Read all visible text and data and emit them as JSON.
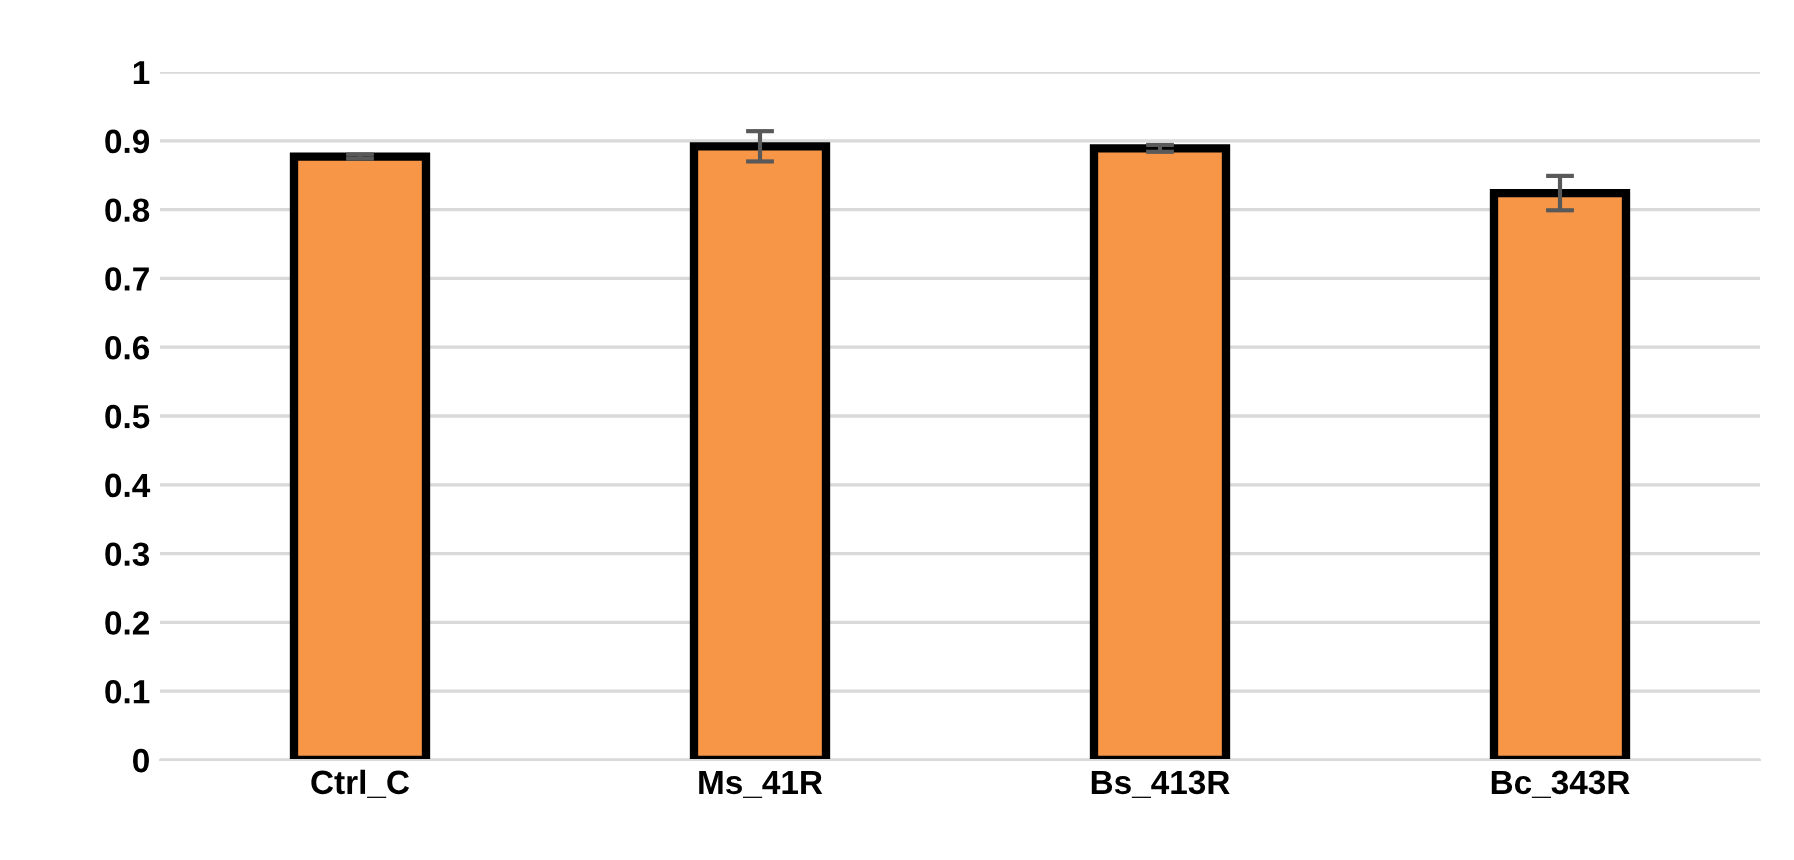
{
  "chart_data": {
    "type": "bar",
    "categories": [
      "Ctrl_C",
      "Ms_41R",
      "Bs_413R",
      "Bc_343R"
    ],
    "values": [
      0.877,
      0.892,
      0.889,
      0.824
    ],
    "errors": [
      0.003,
      0.022,
      0.005,
      0.025
    ],
    "color": "#f79646",
    "ylim": [
      0,
      1
    ],
    "yticks": [
      0,
      0.1,
      0.2,
      0.3,
      0.4,
      0.5,
      0.6,
      0.7,
      0.8,
      0.9,
      1
    ],
    "grid": "y"
  }
}
